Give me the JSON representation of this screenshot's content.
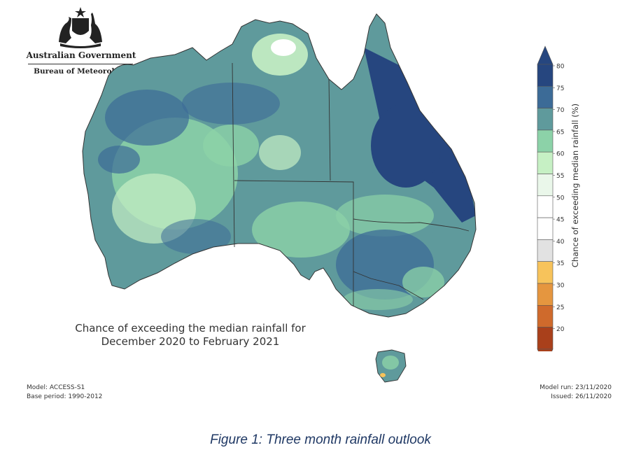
{
  "header": {
    "org_line1": "Australian Government",
    "org_line2": "Bureau of Meteorology"
  },
  "map": {
    "caption_line1": "Chance of exceeding the median rainfall for",
    "caption_line2": "December 2020 to February 2021",
    "colorbar": {
      "label": "Chance of exceeding median rainfall (%)",
      "ticks": [
        "80",
        "75",
        "70",
        "65",
        "60",
        "55",
        "50",
        "45",
        "40",
        "35",
        "30",
        "25",
        "20"
      ],
      "colors": [
        "#26467f",
        "#3c6b97",
        "#5f9a9c",
        "#8cd2a8",
        "#c6f0c4",
        "#eaf7ea",
        "#ffffff",
        "#ffffff",
        "#e2e2e2",
        "#f7c35b",
        "#e5963f",
        "#cf6a2c",
        "#a9401b"
      ],
      "icons": {
        "top": "triangle-up-icon",
        "bottom": "triangle-down-icon"
      }
    }
  },
  "footer": {
    "model": "Model: ACCESS-S1",
    "base_period": "Base period: 1990-2012",
    "model_run": "Model run: 23/11/2020",
    "issued": "Issued: 26/11/2020"
  },
  "figure": {
    "caption": "Figure 1: Three month rainfall outlook"
  },
  "icons": {
    "crest": "coat-of-arms-icon"
  }
}
